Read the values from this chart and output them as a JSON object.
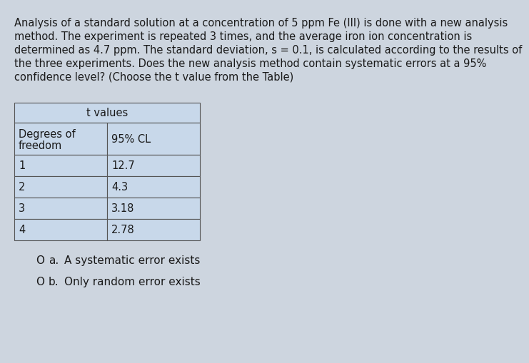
{
  "background_color": "#cdd5df",
  "text_color": "#1a1a1a",
  "paragraph_lines": [
    "Analysis of a standard solution at a concentration of 5 ppm Fe (III) is done with a new analysis",
    "method. The experiment is repeated 3 times, and the average iron ion concentration is",
    "determined as 4.7 ppm. The standard deviation, s = 0.1, is calculated according to the results of",
    "the three experiments. Does the new analysis method contain systematic errors at a 95%",
    "confidence level? (Choose the t value from the Table)"
  ],
  "table_title": "t values",
  "table_header_col1_line1": "Degrees of",
  "table_header_col1_line2": "freedom",
  "table_header_col2": "95% CL",
  "table_rows": [
    [
      "1",
      "12.7"
    ],
    [
      "2",
      "4.3"
    ],
    [
      "3",
      "3.18"
    ],
    [
      "4",
      "2.78"
    ]
  ],
  "table_bg": "#c8d8ea",
  "table_border_color": "#555555",
  "option_a_circle": "O",
  "option_a_label": "a.",
  "option_a_text": "A systematic error exists",
  "option_b_circle": "O",
  "option_b_label": "b.",
  "option_b_text": "Only random error exists",
  "font_size_paragraph": 10.5,
  "font_size_table": 10.5,
  "font_size_options": 11.0
}
